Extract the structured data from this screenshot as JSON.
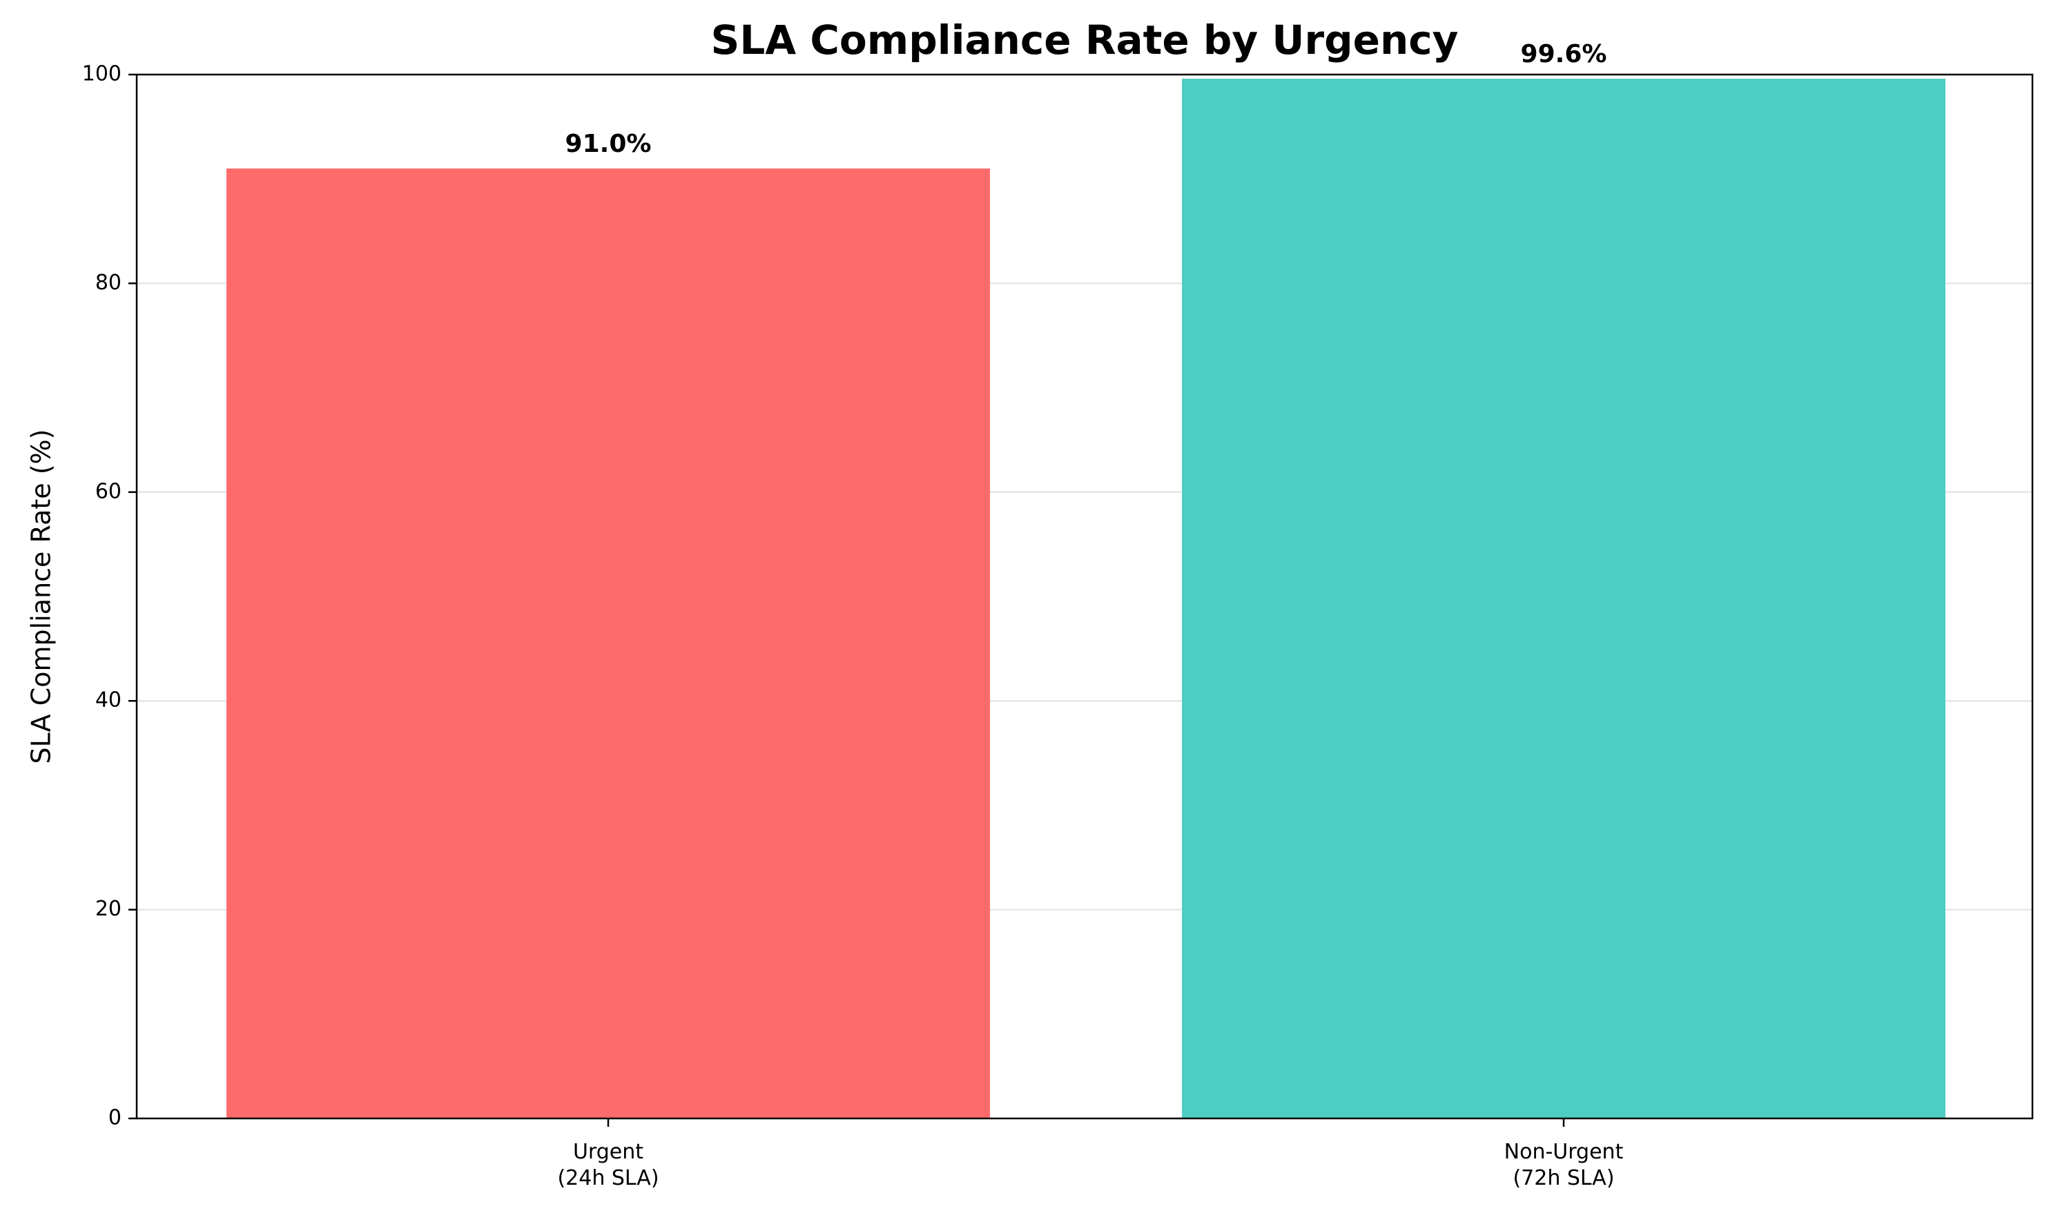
{
  "chart_data": {
    "type": "bar",
    "title": "SLA Compliance Rate by Urgency",
    "ylabel": "SLA Compliance Rate (%)",
    "xlabel": "",
    "categories": [
      [
        "Urgent",
        "(24h SLA)"
      ],
      [
        "Non-Urgent",
        "(72h SLA)"
      ]
    ],
    "values": [
      91.0,
      99.6
    ],
    "value_labels": [
      "91.0%",
      "99.6%"
    ],
    "colors": [
      "#ff6b6b",
      "#4ecdc4"
    ],
    "ylim": [
      0,
      100
    ],
    "yticks": [
      0,
      20,
      40,
      60,
      80,
      100
    ],
    "grid": "y",
    "legend": "none"
  }
}
